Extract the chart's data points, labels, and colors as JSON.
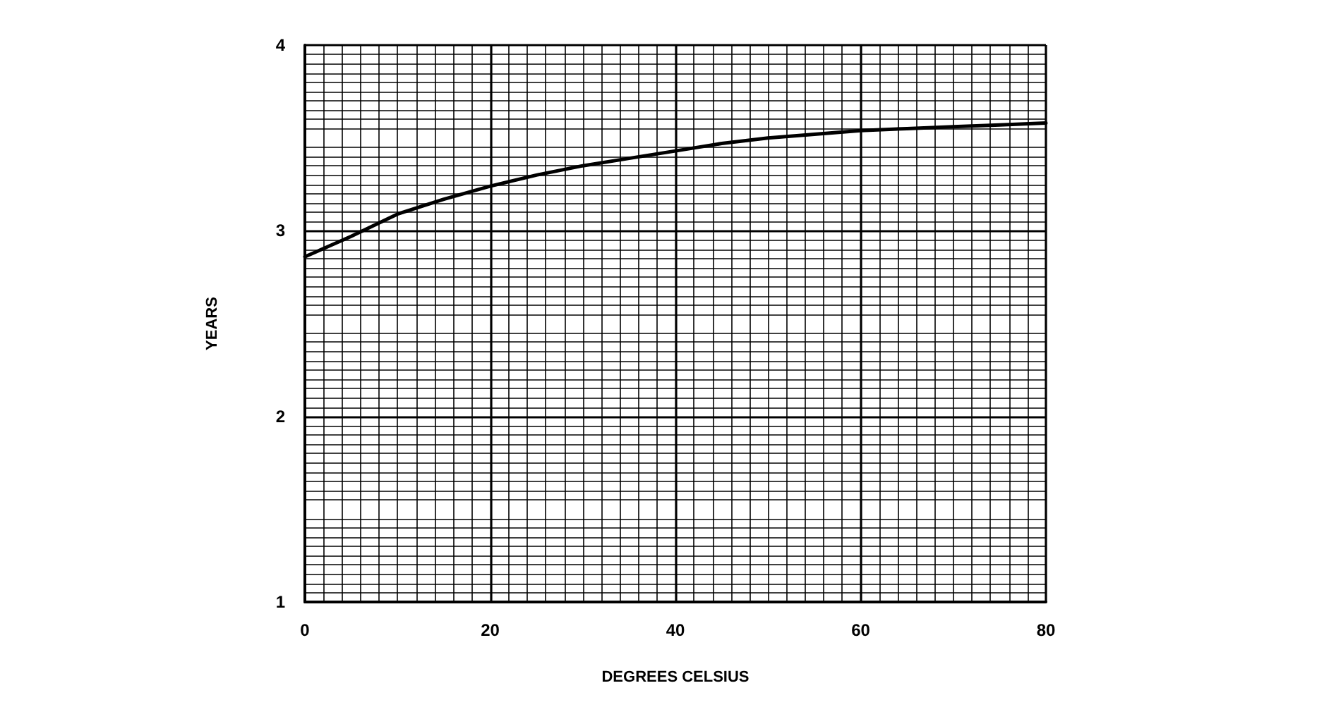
{
  "chart_data": {
    "type": "line",
    "xlabel": "DEGREES CELSIUS",
    "ylabel": "YEARS",
    "x": [
      0,
      5,
      10,
      15,
      20,
      25,
      30,
      35,
      40,
      45,
      50,
      55,
      60,
      65,
      70,
      75,
      80
    ],
    "series": [
      {
        "color": "#000000",
        "values": [
          2.86,
          2.97,
          3.09,
          3.17,
          3.24,
          3.3,
          3.35,
          3.39,
          3.43,
          3.47,
          3.5,
          3.52,
          3.54,
          3.55,
          3.56,
          3.57,
          3.58
        ]
      }
    ],
    "xlim": [
      0,
      80
    ],
    "xticks": [
      0,
      20,
      40,
      60,
      80
    ],
    "ylim": [
      1,
      4
    ],
    "yticks": [
      1,
      2,
      3,
      4
    ],
    "grid": true,
    "marker": "none",
    "line_style": "solid"
  }
}
